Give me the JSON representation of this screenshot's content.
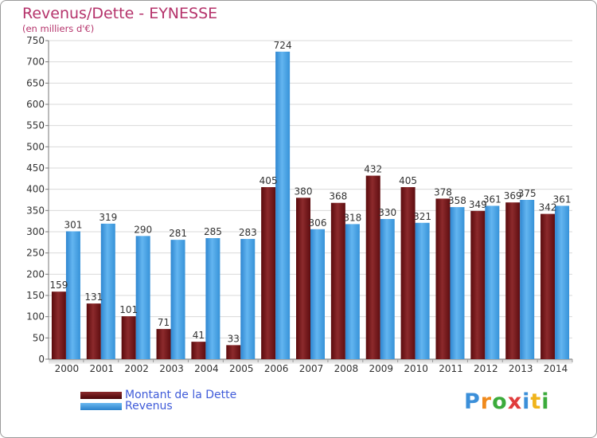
{
  "title": "Revenus/Dette - EYNESSE",
  "subtitle": "(en milliers d'€)",
  "legend": [
    {
      "label": "Montant de la Dette",
      "color": "#6b0f12"
    },
    {
      "label": "Revenus",
      "color": "#3b9de6"
    }
  ],
  "logo": {
    "text": "Proxiti",
    "letters": [
      "P",
      "r",
      "o",
      "x",
      "i",
      "t",
      "i"
    ],
    "colors": [
      "#3b8fd9",
      "#f08a1c",
      "#3bab3b",
      "#e03c3c",
      "#3b8fd9",
      "#f0b41c",
      "#3bab3b"
    ]
  },
  "chart_data": {
    "type": "bar",
    "title": "Revenus/Dette - EYNESSE",
    "ylabel": "(en milliers d'€)",
    "xlabel": "",
    "categories": [
      "2000",
      "2001",
      "2002",
      "2003",
      "2004",
      "2005",
      "2006",
      "2007",
      "2008",
      "2009",
      "2010",
      "2011",
      "2012",
      "2013",
      "2014"
    ],
    "series": [
      {
        "name": "Montant de la Dette",
        "color": "#6b0f12",
        "values": [
          159,
          131,
          101,
          71,
          41,
          33,
          405,
          380,
          368,
          432,
          405,
          378,
          349,
          369,
          342
        ]
      },
      {
        "name": "Revenus",
        "color": "#3b9de6",
        "values": [
          301,
          319,
          290,
          281,
          285,
          283,
          724,
          306,
          318,
          330,
          321,
          358,
          361,
          375,
          361
        ]
      }
    ],
    "ylim": [
      0,
      750
    ],
    "yticks": [
      0,
      50,
      100,
      150,
      200,
      250,
      300,
      350,
      400,
      450,
      500,
      550,
      600,
      650,
      700,
      750
    ],
    "grid": true,
    "legend": "bottom-left"
  }
}
